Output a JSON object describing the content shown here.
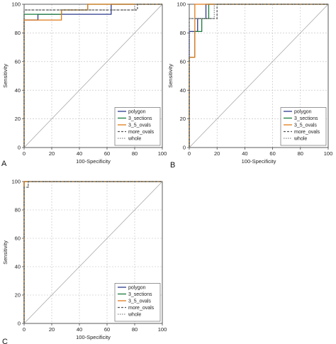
{
  "chart_data": [
    {
      "type": "line",
      "panel_label": "A",
      "xlabel": "100-Specificity",
      "ylabel": "Sensitivity",
      "xlim": [
        0,
        100
      ],
      "ylim": [
        0,
        100
      ],
      "xticks": [
        0,
        20,
        40,
        60,
        80,
        100
      ],
      "yticks": [
        0,
        20,
        40,
        60,
        80,
        100
      ],
      "grid": "dashed",
      "legend_position": "bottom-right",
      "series": [
        {
          "name": "polygon",
          "color": "#2b3a8c",
          "dash": "solid",
          "x": [
            0,
            0,
            10,
            10,
            63,
            63,
            100
          ],
          "y": [
            0,
            89,
            89,
            93,
            93,
            100,
            100
          ]
        },
        {
          "name": "3_sections",
          "color": "#1a7a3a",
          "dash": "solid",
          "x": [
            0,
            0,
            27,
            27,
            46,
            46,
            100
          ],
          "y": [
            0,
            93,
            93,
            96,
            96,
            100,
            100
          ]
        },
        {
          "name": "3_5_ovals",
          "color": "#e07b1a",
          "dash": "solid",
          "x": [
            0,
            0,
            27,
            27,
            46,
            46,
            100
          ],
          "y": [
            0,
            89,
            89,
            96,
            96,
            100,
            100
          ]
        },
        {
          "name": "more_ovals",
          "color": "#555555",
          "dash": "dashed",
          "x": [
            0,
            0,
            82,
            82,
            100
          ],
          "y": [
            0,
            96,
            96,
            100,
            100
          ]
        },
        {
          "name": "whole",
          "color": "#8a8a8a",
          "dash": "dotted",
          "x": [
            0,
            0,
            80,
            80,
            100
          ],
          "y": [
            0,
            96,
            96,
            100,
            100
          ]
        }
      ],
      "diagonal": true
    },
    {
      "type": "line",
      "panel_label": "B",
      "xlabel": "100-Specificity",
      "ylabel": "Sensitivity",
      "xlim": [
        0,
        100
      ],
      "ylim": [
        0,
        100
      ],
      "xticks": [
        0,
        20,
        40,
        60,
        80,
        100
      ],
      "yticks": [
        0,
        20,
        40,
        60,
        80,
        100
      ],
      "grid": "dashed",
      "legend_position": "bottom-right",
      "series": [
        {
          "name": "polygon",
          "color": "#2b3a8c",
          "dash": "solid",
          "x": [
            0,
            0,
            6,
            6,
            12,
            12,
            100
          ],
          "y": [
            0,
            81,
            81,
            90,
            90,
            100,
            100
          ]
        },
        {
          "name": "3_sections",
          "color": "#1a7a3a",
          "dash": "solid",
          "x": [
            0,
            0,
            4,
            4,
            9,
            9,
            14,
            14,
            100
          ],
          "y": [
            0,
            63,
            63,
            81,
            81,
            90,
            90,
            100,
            100
          ]
        },
        {
          "name": "3_5_ovals",
          "color": "#e07b1a",
          "dash": "solid",
          "x": [
            0,
            0,
            4,
            4,
            100
          ],
          "y": [
            0,
            63,
            63,
            100,
            100
          ]
        },
        {
          "name": "more_ovals",
          "color": "#555555",
          "dash": "dashed",
          "x": [
            0,
            0,
            20,
            20,
            100
          ],
          "y": [
            0,
            90,
            90,
            100,
            100
          ]
        },
        {
          "name": "whole",
          "color": "#8a8a8a",
          "dash": "dotted",
          "x": [
            0,
            0,
            18,
            18,
            100
          ],
          "y": [
            0,
            90,
            90,
            100,
            100
          ]
        }
      ],
      "diagonal": true
    },
    {
      "type": "line",
      "panel_label": "C",
      "xlabel": "100-Specificity",
      "ylabel": "Sensitivity",
      "xlim": [
        0,
        100
      ],
      "ylim": [
        0,
        100
      ],
      "xticks": [
        0,
        20,
        40,
        60,
        80,
        100
      ],
      "yticks": [
        0,
        20,
        40,
        60,
        80,
        100
      ],
      "grid": "dashed",
      "legend_position": "bottom-right",
      "series": [
        {
          "name": "polygon",
          "color": "#2b3a8c",
          "dash": "solid",
          "x": [
            0,
            0,
            100
          ],
          "y": [
            0,
            100,
            100
          ]
        },
        {
          "name": "3_sections",
          "color": "#1a7a3a",
          "dash": "solid",
          "x": [
            0,
            0,
            100
          ],
          "y": [
            0,
            100,
            100
          ]
        },
        {
          "name": "3_5_ovals",
          "color": "#e07b1a",
          "dash": "solid",
          "x": [
            0,
            0,
            100
          ],
          "y": [
            0,
            100,
            100
          ]
        },
        {
          "name": "more_ovals",
          "color": "#555555",
          "dash": "dashed",
          "x": [
            0,
            0,
            3,
            3,
            100
          ],
          "y": [
            0,
            96,
            96,
            100,
            100
          ]
        },
        {
          "name": "whole",
          "color": "#8a8a8a",
          "dash": "dotted",
          "x": [
            0,
            0,
            3,
            3,
            100
          ],
          "y": [
            0,
            96,
            96,
            100,
            100
          ]
        }
      ],
      "diagonal": true
    }
  ]
}
